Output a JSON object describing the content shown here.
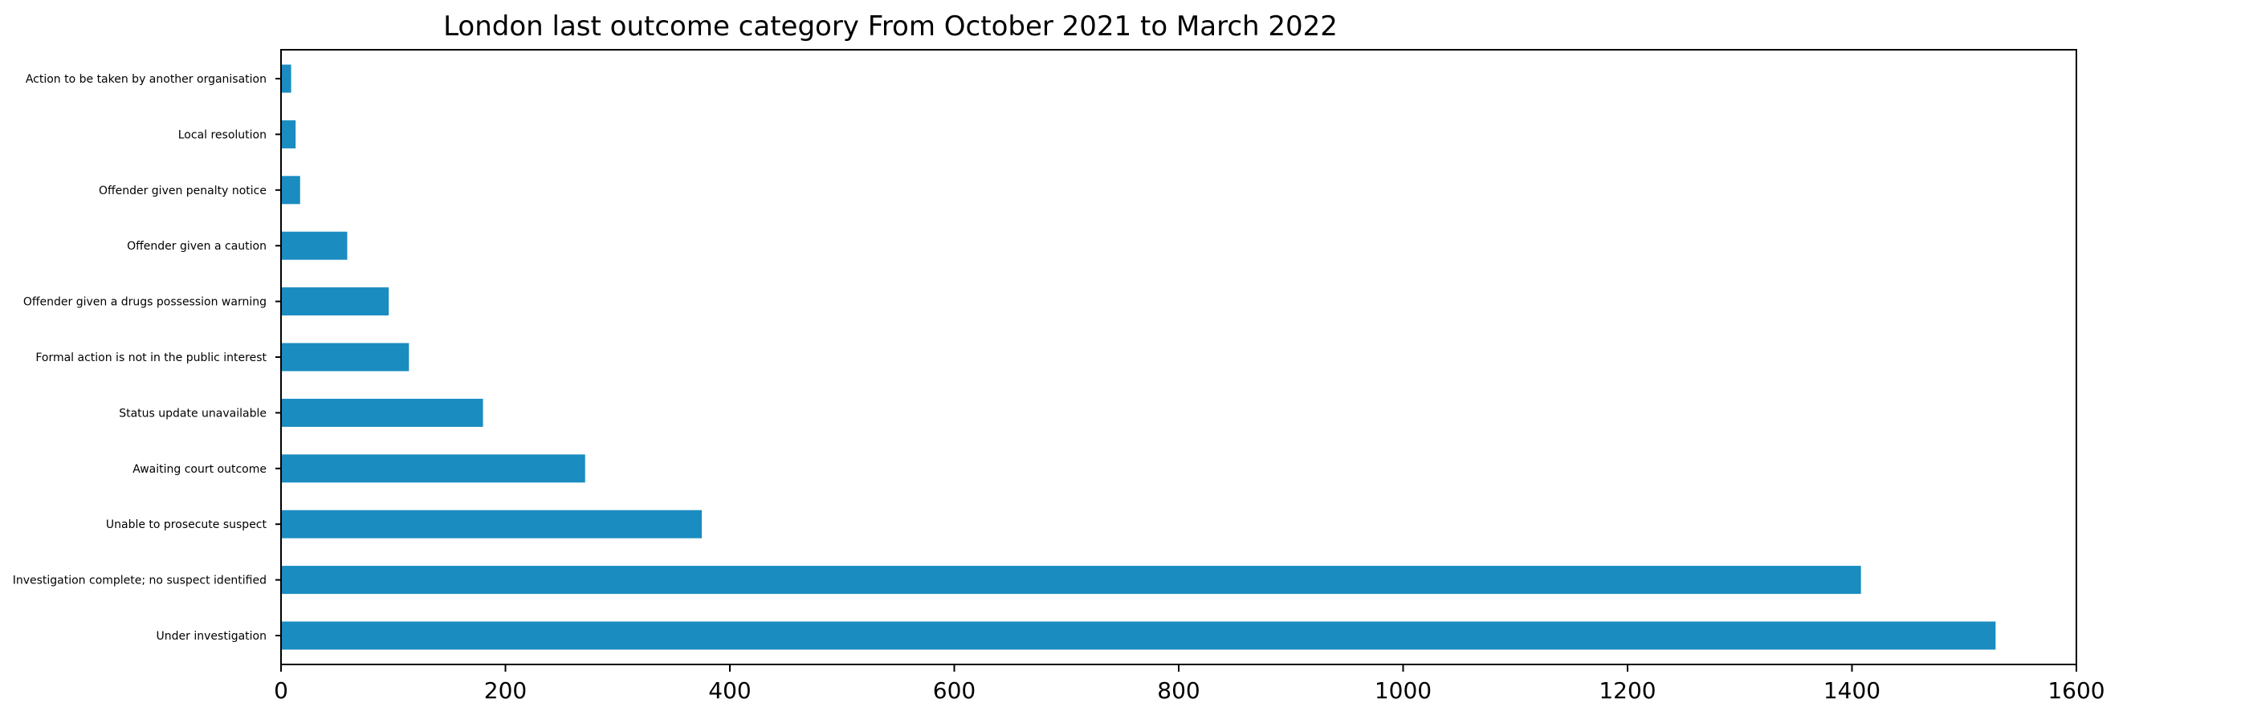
{
  "chart_data": {
    "type": "bar",
    "orientation": "horizontal",
    "title": "London last outcome category From October 2021 to March 2022",
    "xlabel": "",
    "ylabel": "",
    "categories": [
      "Under investigation",
      "Investigation complete; no suspect identified",
      "Unable to prosecute suspect",
      "Awaiting court outcome",
      "Status update unavailable",
      "Formal action is not in the public interest",
      "Offender given a drugs possession warning",
      "Offender given a caution",
      "Offender given penalty notice",
      "Local resolution",
      "Action to be taken by another organisation"
    ],
    "values": [
      1528,
      1408,
      375,
      271,
      180,
      114,
      96,
      59,
      17,
      13,
      9
    ],
    "xlim": [
      0,
      1600
    ],
    "xticks": [
      0,
      200,
      400,
      600,
      800,
      1000,
      1200,
      1400,
      1600
    ],
    "bar_color": "#1a8cc0",
    "grid": false,
    "legend": "none"
  }
}
